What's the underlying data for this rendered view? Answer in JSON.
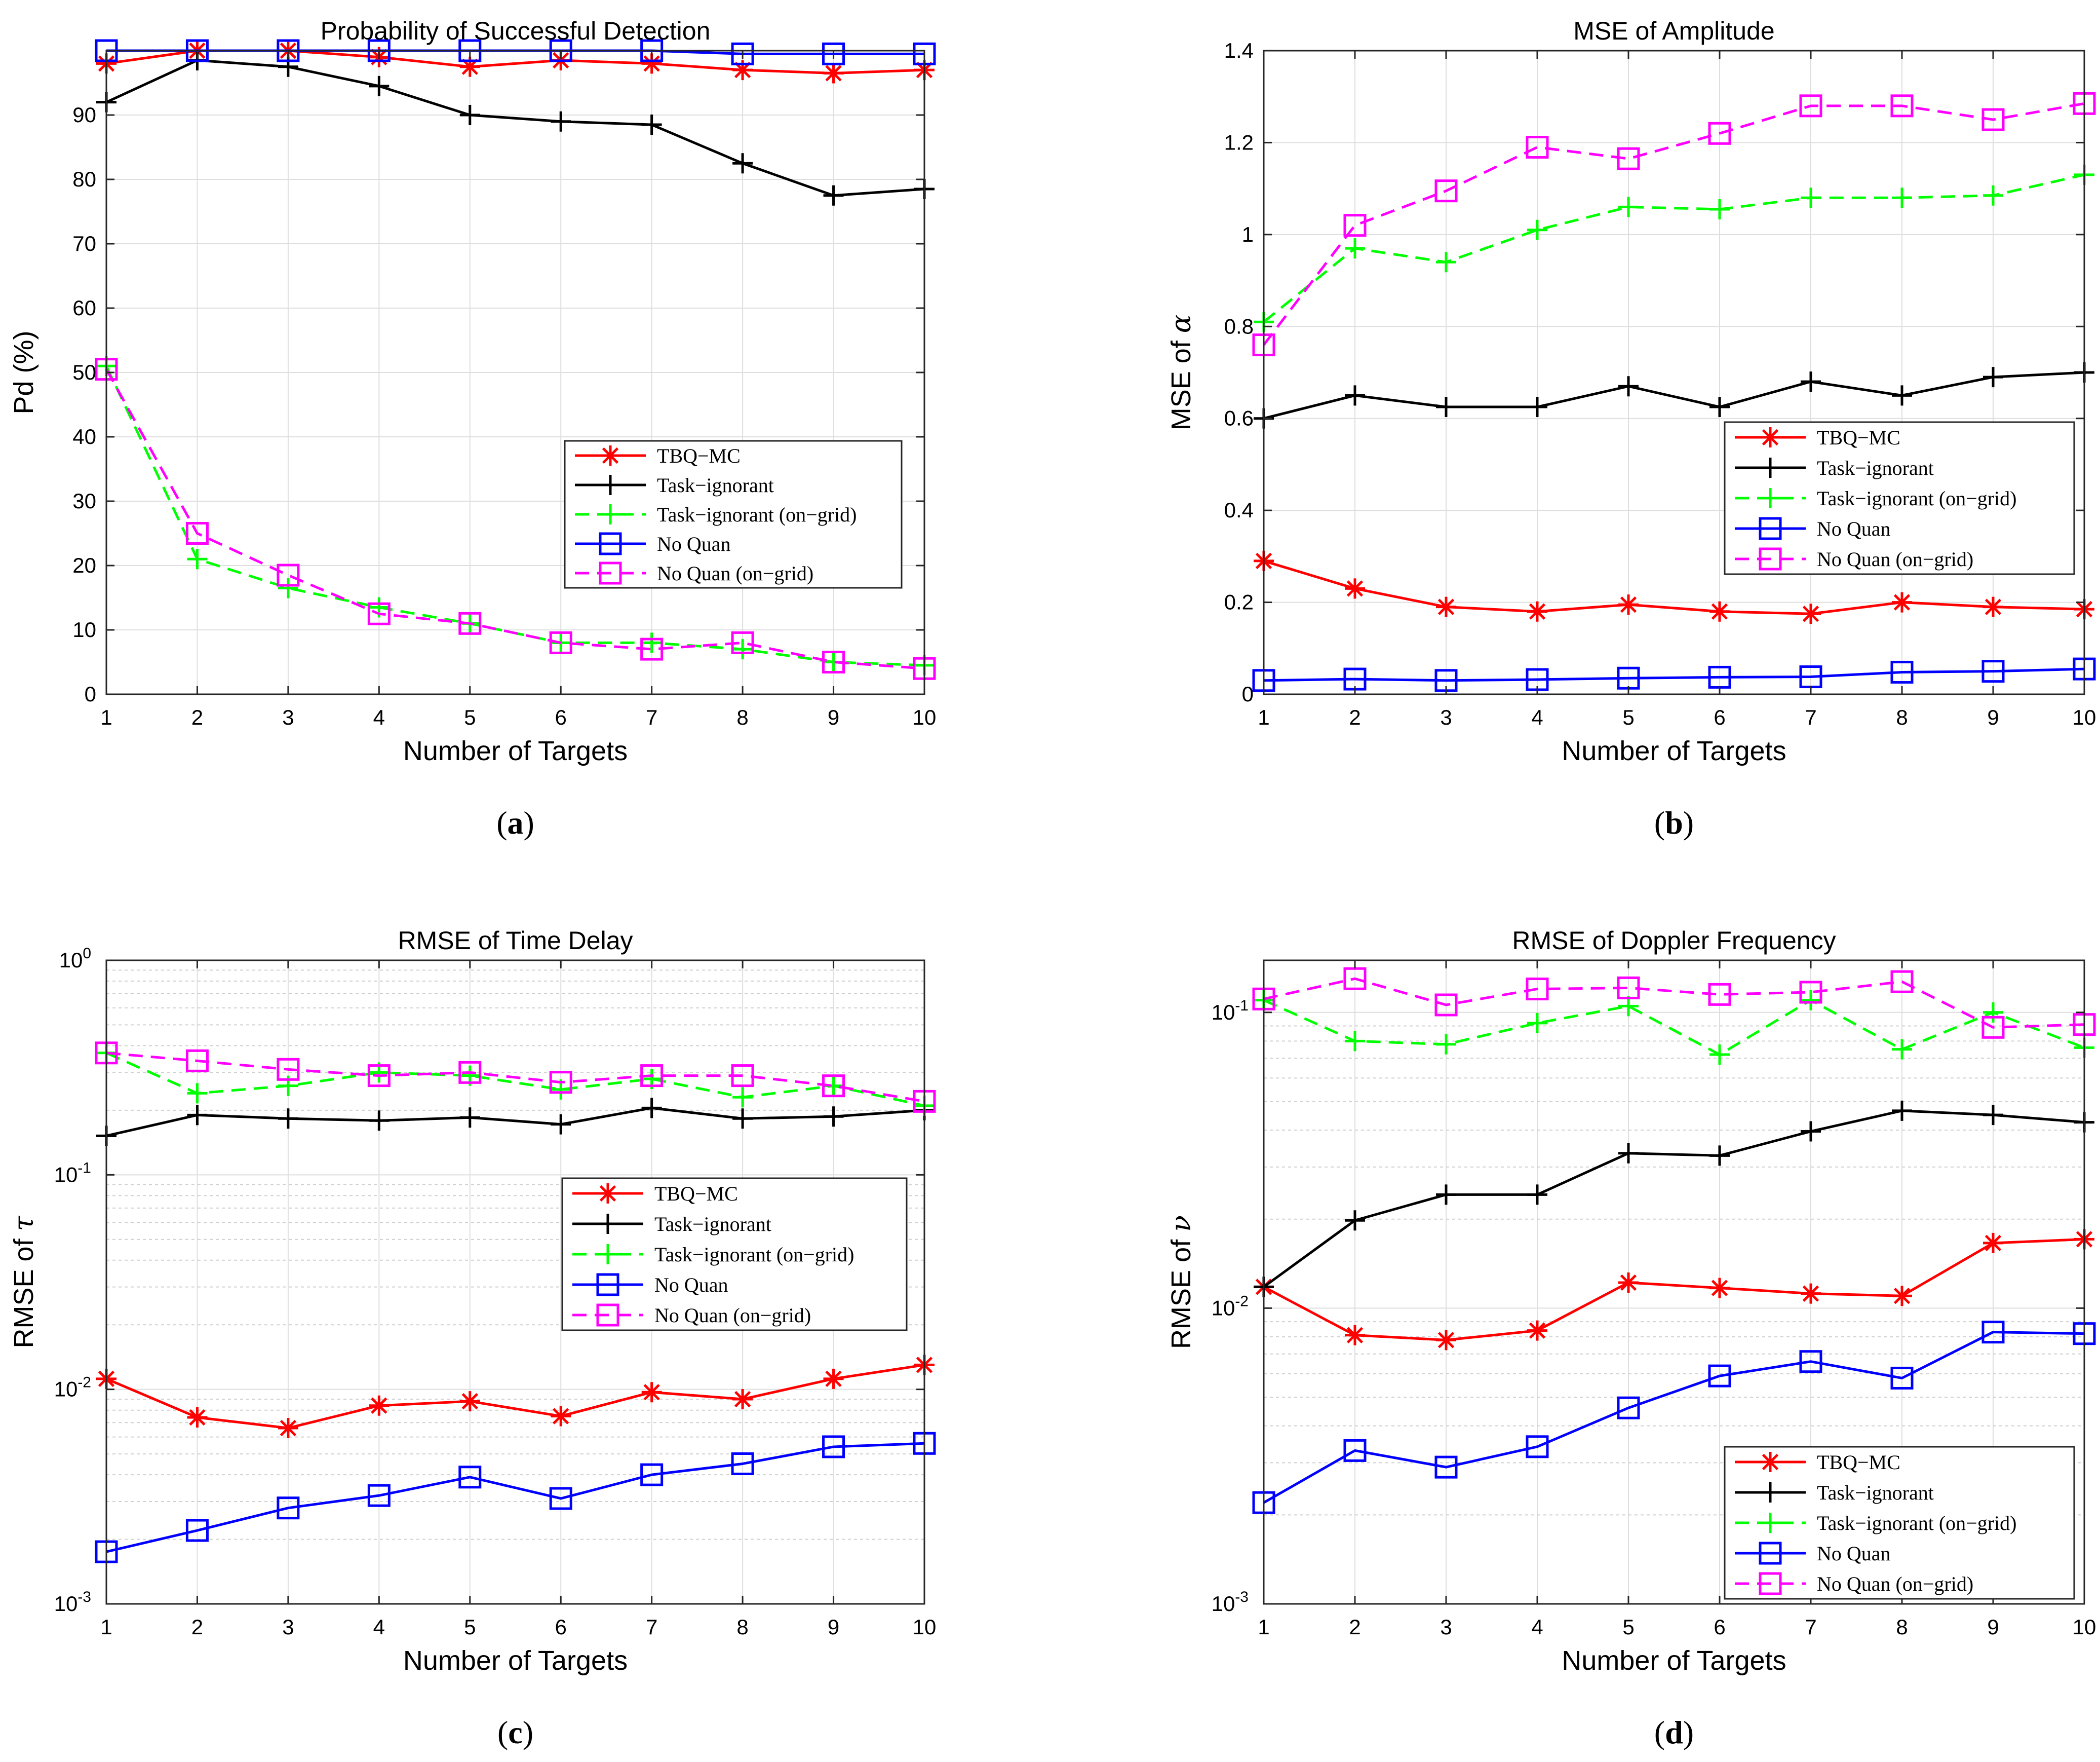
{
  "chart_data": [
    {
      "type": "line",
      "caption_label": "a",
      "title": "Probability of Successful Detection",
      "xlabel": "Number of Targets",
      "ylabel": "Pd (%)",
      "ylabel_italic": "",
      "yscale": "linear",
      "xlim": [
        1,
        10
      ],
      "ylim": [
        0,
        100
      ],
      "xticks": [
        1,
        2,
        3,
        4,
        5,
        6,
        7,
        8,
        9,
        10
      ],
      "yticks": [
        0,
        10,
        20,
        30,
        40,
        50,
        60,
        70,
        80,
        90
      ],
      "grid": true,
      "legend_position": "center-right",
      "x": [
        1,
        2,
        3,
        4,
        5,
        6,
        7,
        8,
        9,
        10
      ],
      "series": [
        {
          "name": "TBQ−MC",
          "color": "#ff0000",
          "dash": "solid",
          "marker": "asterisk",
          "values": [
            98,
            100,
            100,
            99,
            97.5,
            98.5,
            98,
            97,
            96.5,
            97
          ]
        },
        {
          "name": "Task−ignorant",
          "color": "#000000",
          "dash": "solid",
          "marker": "plus",
          "values": [
            92,
            98.5,
            97.5,
            94.5,
            90,
            89,
            88.5,
            82.5,
            77.5,
            78.5
          ]
        },
        {
          "name": "Task−ignorant (on−grid)",
          "color": "#00ff00",
          "dash": "dashed",
          "marker": "plus",
          "values": [
            51,
            21,
            16.5,
            13.5,
            11,
            8,
            8,
            7,
            5,
            4.5
          ]
        },
        {
          "name": "No Quan",
          "color": "#0000ff",
          "dash": "solid",
          "marker": "square",
          "values": [
            100,
            100,
            100,
            100,
            100,
            100,
            100,
            99.5,
            99.5,
            99.5
          ]
        },
        {
          "name": "No Quan (on−grid)",
          "color": "#ff00ff",
          "dash": "dashed",
          "marker": "square",
          "values": [
            50.5,
            25,
            18.5,
            12.5,
            11,
            8,
            7,
            8,
            5,
            4
          ]
        }
      ]
    },
    {
      "type": "line",
      "caption_label": "b",
      "title": "MSE of Amplitude",
      "xlabel": "Number of Targets",
      "ylabel": "MSE of ",
      "ylabel_italic": "α",
      "yscale": "linear",
      "xlim": [
        1,
        10
      ],
      "ylim": [
        0,
        1.4
      ],
      "xticks": [
        1,
        2,
        3,
        4,
        5,
        6,
        7,
        8,
        9,
        10
      ],
      "yticks": [
        0,
        0.2,
        0.4,
        0.6,
        0.8,
        1,
        1.2,
        1.4
      ],
      "grid": true,
      "legend_position": "center-right",
      "x": [
        1,
        2,
        3,
        4,
        5,
        6,
        7,
        8,
        9,
        10
      ],
      "series": [
        {
          "name": "TBQ−MC",
          "color": "#ff0000",
          "dash": "solid",
          "marker": "asterisk",
          "values": [
            0.29,
            0.23,
            0.19,
            0.18,
            0.195,
            0.18,
            0.175,
            0.2,
            0.19,
            0.185
          ]
        },
        {
          "name": "Task−ignorant",
          "color": "#000000",
          "dash": "solid",
          "marker": "plus",
          "values": [
            0.6,
            0.65,
            0.625,
            0.625,
            0.67,
            0.625,
            0.68,
            0.65,
            0.69,
            0.7
          ]
        },
        {
          "name": "Task−ignorant (on−grid)",
          "color": "#00ff00",
          "dash": "dashed",
          "marker": "plus",
          "values": [
            0.81,
            0.97,
            0.94,
            1.01,
            1.06,
            1.055,
            1.08,
            1.08,
            1.085,
            1.13
          ]
        },
        {
          "name": "No Quan",
          "color": "#0000ff",
          "dash": "solid",
          "marker": "square",
          "values": [
            0.03,
            0.033,
            0.03,
            0.032,
            0.035,
            0.037,
            0.038,
            0.048,
            0.05,
            0.055
          ]
        },
        {
          "name": "No Quan (on−grid)",
          "color": "#ff00ff",
          "dash": "dashed",
          "marker": "square",
          "values": [
            0.76,
            1.02,
            1.095,
            1.19,
            1.165,
            1.22,
            1.28,
            1.28,
            1.25,
            1.285
          ]
        }
      ]
    },
    {
      "type": "line",
      "caption_label": "c",
      "title": "RMSE of Time Delay",
      "xlabel": "Number of Targets",
      "ylabel": "RMSE of ",
      "ylabel_italic": "τ",
      "yscale": "log",
      "xlim": [
        1,
        10
      ],
      "ylim": [
        0.001,
        1
      ],
      "xticks": [
        1,
        2,
        3,
        4,
        5,
        6,
        7,
        8,
        9,
        10
      ],
      "yticks": [
        0.001,
        0.01,
        0.1,
        1
      ],
      "yticklabels": [
        [
          "10",
          "-3"
        ],
        [
          "10",
          "-2"
        ],
        [
          "10",
          "-1"
        ],
        [
          "10",
          "0"
        ]
      ],
      "grid": true,
      "legend_position": "center-right",
      "x": [
        1,
        2,
        3,
        4,
        5,
        6,
        7,
        8,
        9,
        10
      ],
      "series": [
        {
          "name": "TBQ−MC",
          "color": "#ff0000",
          "dash": "solid",
          "marker": "asterisk",
          "values": [
            0.0112,
            0.0074,
            0.0066,
            0.0084,
            0.0088,
            0.0075,
            0.0097,
            0.009,
            0.0112,
            0.013
          ]
        },
        {
          "name": "Task−ignorant",
          "color": "#000000",
          "dash": "solid",
          "marker": "plus",
          "values": [
            0.152,
            0.19,
            0.183,
            0.179,
            0.185,
            0.172,
            0.205,
            0.183,
            0.187,
            0.2
          ]
        },
        {
          "name": "Task−ignorant (on−grid)",
          "color": "#00ff00",
          "dash": "dashed",
          "marker": "plus",
          "values": [
            0.37,
            0.24,
            0.26,
            0.3,
            0.29,
            0.25,
            0.28,
            0.23,
            0.26,
            0.21
          ]
        },
        {
          "name": "No Quan",
          "color": "#0000ff",
          "dash": "solid",
          "marker": "square",
          "values": [
            0.00175,
            0.0022,
            0.0028,
            0.0032,
            0.0039,
            0.0031,
            0.004,
            0.0045,
            0.0054,
            0.0056
          ]
        },
        {
          "name": "No Quan (on−grid)",
          "color": "#ff00ff",
          "dash": "dashed",
          "marker": "square",
          "values": [
            0.37,
            0.34,
            0.31,
            0.29,
            0.3,
            0.27,
            0.29,
            0.29,
            0.26,
            0.22
          ]
        }
      ]
    },
    {
      "type": "line",
      "caption_label": "d",
      "title": "RMSE of Doppler Frequency",
      "xlabel": "Number of Targets",
      "ylabel": "RMSE of ",
      "ylabel_italic": "ν",
      "yscale": "log",
      "xlim": [
        1,
        10
      ],
      "ylim": [
        0.001,
        0.15
      ],
      "xticks": [
        1,
        2,
        3,
        4,
        5,
        6,
        7,
        8,
        9,
        10
      ],
      "yticks": [
        0.001,
        0.01,
        0.1
      ],
      "yticklabels": [
        [
          "10",
          "-3"
        ],
        [
          "10",
          "-2"
        ],
        [
          "10",
          "-1"
        ]
      ],
      "grid": true,
      "legend_position": "bottom-right",
      "x": [
        1,
        2,
        3,
        4,
        5,
        6,
        7,
        8,
        9,
        10
      ],
      "series": [
        {
          "name": "TBQ−MC",
          "color": "#ff0000",
          "dash": "solid",
          "marker": "asterisk",
          "values": [
            0.0118,
            0.0081,
            0.0078,
            0.0084,
            0.0122,
            0.0117,
            0.0112,
            0.011,
            0.0166,
            0.0171
          ]
        },
        {
          "name": "Task−ignorant",
          "color": "#000000",
          "dash": "solid",
          "marker": "plus",
          "values": [
            0.0118,
            0.0198,
            0.0242,
            0.0242,
            0.0334,
            0.0328,
            0.0396,
            0.0465,
            0.045,
            0.0425
          ]
        },
        {
          "name": "Task−ignorant (on−grid)",
          "color": "#00ff00",
          "dash": "dashed",
          "marker": "plus",
          "values": [
            0.11,
            0.08,
            0.078,
            0.092,
            0.105,
            0.072,
            0.11,
            0.075,
            0.1,
            0.076
          ]
        },
        {
          "name": "No Quan",
          "color": "#0000ff",
          "dash": "solid",
          "marker": "square",
          "values": [
            0.0022,
            0.0033,
            0.0029,
            0.0034,
            0.0046,
            0.0059,
            0.0066,
            0.0058,
            0.0083,
            0.0082
          ]
        },
        {
          "name": "No Quan (on−grid)",
          "color": "#ff00ff",
          "dash": "dashed",
          "marker": "square",
          "values": [
            0.111,
            0.13,
            0.106,
            0.12,
            0.121,
            0.115,
            0.117,
            0.127,
            0.089,
            0.091
          ]
        }
      ]
    }
  ]
}
